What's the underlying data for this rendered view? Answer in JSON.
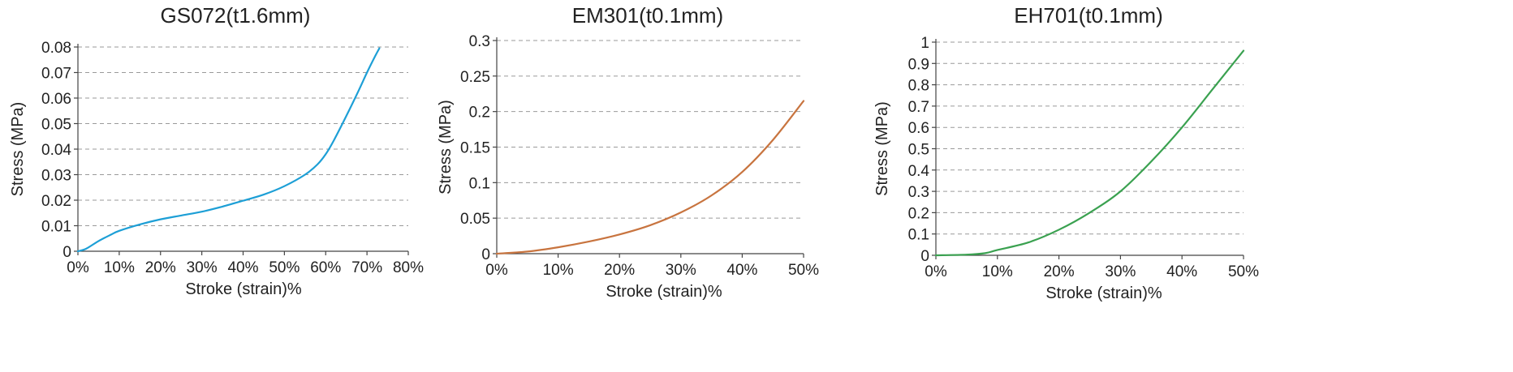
{
  "chart_data": [
    {
      "type": "line",
      "title": "GS072(t1.6mm)",
      "xlabel": "Stroke (strain)%",
      "ylabel": "Stress (MPa)",
      "xlim": [
        0,
        80
      ],
      "ylim": [
        0,
        0.08
      ],
      "x_ticks": [
        "0%",
        "10%",
        "20%",
        "30%",
        "40%",
        "50%",
        "60%",
        "70%",
        "80%"
      ],
      "y_ticks": [
        "0",
        "0.01",
        "0.02",
        "0.03",
        "0.04",
        "0.05",
        "0.06",
        "0.07",
        "0.08"
      ],
      "grid": "horizontal dashed",
      "color": "#1d9fd6",
      "series": [
        {
          "x": [
            0,
            2,
            5,
            8,
            10,
            15,
            20,
            25,
            30,
            35,
            40,
            45,
            50,
            55,
            58,
            60,
            62,
            65,
            68,
            70,
            72,
            73
          ],
          "y": [
            0,
            0.001,
            0.004,
            0.0065,
            0.008,
            0.0105,
            0.0125,
            0.014,
            0.0155,
            0.0175,
            0.0198,
            0.0222,
            0.0255,
            0.03,
            0.034,
            0.038,
            0.0435,
            0.053,
            0.063,
            0.07,
            0.0765,
            0.0795
          ]
        }
      ]
    },
    {
      "type": "line",
      "title": "EM301(t0.1mm)",
      "xlabel": "Stroke (strain)%",
      "ylabel": "Stress (MPa)",
      "xlim": [
        0,
        50
      ],
      "ylim": [
        0,
        0.3
      ],
      "x_ticks": [
        "0%",
        "10%",
        "20%",
        "30%",
        "40%",
        "50%"
      ],
      "y_ticks": [
        "0",
        "0.05",
        "0.1",
        "0.15",
        "0.2",
        "0.25",
        "0.3"
      ],
      "grid": "horizontal dashed",
      "color": "#c8743f",
      "series": [
        {
          "x": [
            0,
            5,
            10,
            15,
            20,
            25,
            30,
            35,
            40,
            45,
            50
          ],
          "y": [
            0,
            0.003,
            0.009,
            0.017,
            0.027,
            0.04,
            0.058,
            0.082,
            0.115,
            0.16,
            0.215
          ]
        }
      ]
    },
    {
      "type": "line",
      "title": "EH701(t0.1mm)",
      "xlabel": "Stroke (strain)%",
      "ylabel": "Stress (MPa)",
      "xlim": [
        0,
        50
      ],
      "ylim": [
        0,
        1
      ],
      "x_ticks": [
        "0%",
        "10%",
        "20%",
        "30%",
        "40%",
        "50%"
      ],
      "y_ticks": [
        "0",
        "0.1",
        "0.2",
        "0.3",
        "0.4",
        "0.5",
        "0.6",
        "0.7",
        "0.8",
        "0.9",
        "1"
      ],
      "grid": "horizontal dashed",
      "color": "#3aa150",
      "series": [
        {
          "x": [
            0,
            5,
            8,
            10,
            15,
            20,
            25,
            30,
            35,
            40,
            45,
            50
          ],
          "y": [
            0,
            0.003,
            0.01,
            0.025,
            0.06,
            0.12,
            0.2,
            0.3,
            0.44,
            0.6,
            0.78,
            0.96
          ]
        }
      ]
    }
  ]
}
